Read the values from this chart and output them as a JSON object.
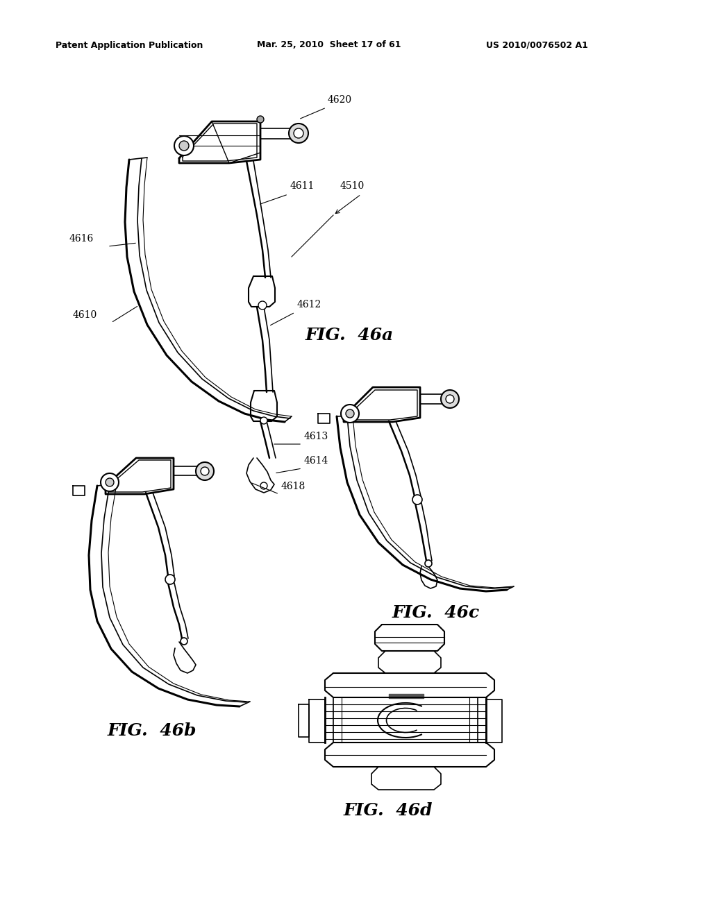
{
  "background_color": "#ffffff",
  "header_left": "Patent Application Publication",
  "header_center": "Mar. 25, 2010  Sheet 17 of 61",
  "header_right": "US 2010/0076502 A1",
  "line_color": "#000000"
}
